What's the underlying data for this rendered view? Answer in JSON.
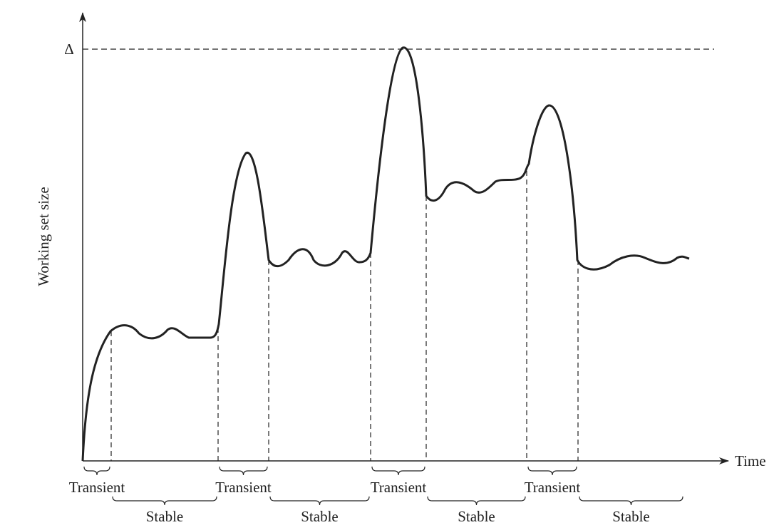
{
  "axes": {
    "y_label": "Working set size",
    "x_label": "Time",
    "delta_label": "Δ"
  },
  "phases": [
    {
      "label": "Transient"
    },
    {
      "label": "Stable"
    },
    {
      "label": "Transient"
    },
    {
      "label": "Stable"
    },
    {
      "label": "Transient"
    },
    {
      "label": "Stable"
    },
    {
      "label": "Transient"
    },
    {
      "label": "Stable"
    }
  ]
}
